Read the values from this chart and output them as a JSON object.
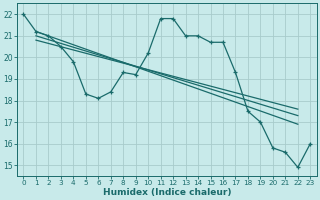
{
  "xlabel": "Humidex (Indice chaleur)",
  "ylabel": "",
  "bg_color": "#c8eaea",
  "line_color": "#1a6b6b",
  "grid_color": "#a8cccc",
  "xlim": [
    -0.5,
    23.5
  ],
  "ylim": [
    14.5,
    22.5
  ],
  "xticks": [
    0,
    1,
    2,
    3,
    4,
    5,
    6,
    7,
    8,
    9,
    10,
    11,
    12,
    13,
    14,
    15,
    16,
    17,
    18,
    19,
    20,
    21,
    22,
    23
  ],
  "yticks": [
    15,
    16,
    17,
    18,
    19,
    20,
    21,
    22
  ],
  "main_x": [
    0,
    1,
    2,
    3,
    4,
    5,
    6,
    7,
    8,
    9,
    10,
    11,
    12,
    13,
    14,
    15,
    16,
    17,
    18,
    19,
    20,
    21,
    22,
    23
  ],
  "main_y": [
    22.0,
    21.2,
    21.0,
    20.5,
    19.8,
    18.3,
    18.1,
    18.4,
    19.3,
    19.2,
    20.2,
    21.8,
    21.8,
    21.0,
    21.0,
    20.7,
    20.7,
    19.3,
    17.5,
    17.0,
    15.8,
    15.6,
    14.9,
    16.0
  ],
  "trend1_x": [
    1,
    22
  ],
  "trend1_y": [
    21.2,
    16.9
  ],
  "trend2_x": [
    1,
    22
  ],
  "trend2_y": [
    21.0,
    17.3
  ],
  "trend3_x": [
    1,
    22
  ],
  "trend3_y": [
    20.8,
    17.6
  ],
  "figsize": [
    3.2,
    2.0
  ],
  "dpi": 100
}
